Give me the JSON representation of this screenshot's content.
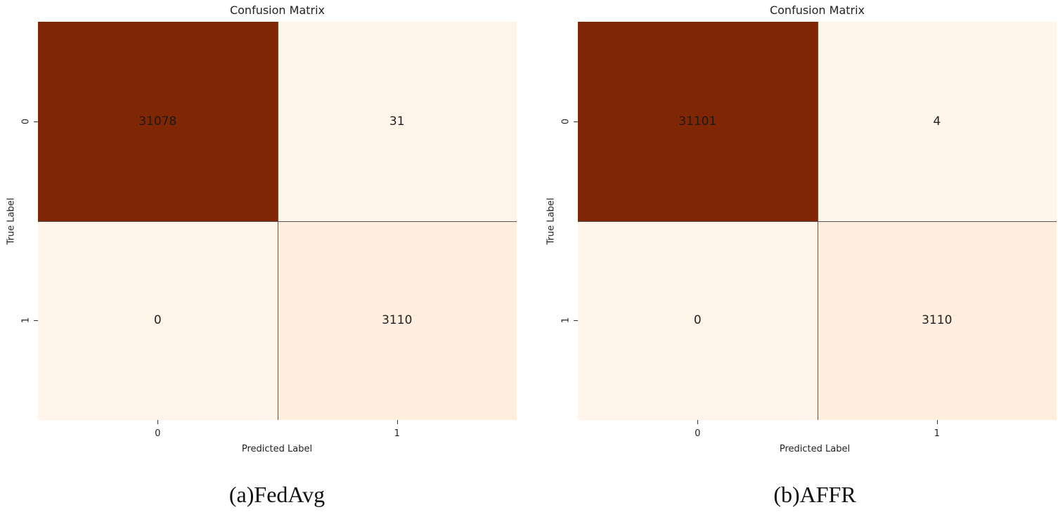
{
  "chart_data": [
    {
      "type": "heatmap",
      "title": "Confusion Matrix",
      "xlabel": "Predicted Label",
      "ylabel": "True Label",
      "x_categories": [
        "0",
        "1"
      ],
      "y_categories": [
        "0",
        "1"
      ],
      "values": [
        [
          31078,
          31
        ],
        [
          0,
          3110
        ]
      ],
      "colormap": "Oranges",
      "caption": "(a)FedAvg"
    },
    {
      "type": "heatmap",
      "title": "Confusion Matrix",
      "xlabel": "Predicted Label",
      "ylabel": "True Label",
      "x_categories": [
        "0",
        "1"
      ],
      "y_categories": [
        "0",
        "1"
      ],
      "values": [
        [
          31101,
          4
        ],
        [
          0,
          3110
        ]
      ],
      "colormap": "Oranges",
      "caption": "(b)AFFR"
    }
  ],
  "colors": {
    "low": "#fff5eb",
    "high": "#7f2704",
    "grid_line": "#555555"
  }
}
